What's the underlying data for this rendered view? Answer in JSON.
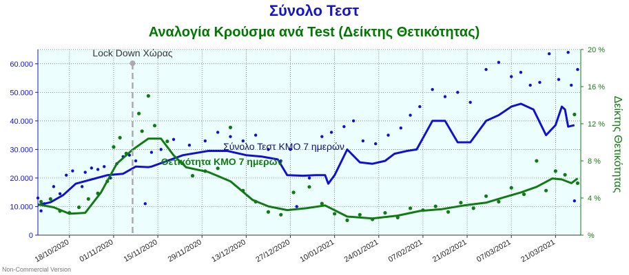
{
  "chart_data": {
    "type": "line",
    "title": "Σύνολο Τεστ",
    "subtitle": "Αναλογία Κρούσμα ανά Test (Δείκτης Θετικότητας)",
    "watermark": "Non-Commercial Version",
    "colors": {
      "title": "#1515c8",
      "subtitle": "#007700",
      "tests": "#1010d0",
      "positivity": "#127a12",
      "plot_bg": "#ecfefe",
      "grid": "#556b55",
      "lockdown": "#aaaaaa"
    },
    "y_left": {
      "min": 0,
      "max": 65000,
      "ticks": [
        0,
        10000,
        20000,
        30000,
        40000,
        50000,
        60000
      ],
      "tick_labels": [
        "0",
        "10.000",
        "20.000",
        "30.000",
        "40.000",
        "50.000",
        "60.000"
      ]
    },
    "y_right": {
      "label": "Δείκτης Θετικότητας",
      "min": 0,
      "max": 20,
      "ticks": [
        0,
        4,
        8,
        12,
        16,
        20
      ],
      "tick_labels": [
        "%",
        "4 %",
        "8 %",
        "12 %",
        "16 %",
        "20 %"
      ]
    },
    "x_range": [
      "2020-10-08",
      "2021-03-29"
    ],
    "x_ticks": [
      {
        "date": "2020-10-18",
        "label": "18/10/2020"
      },
      {
        "date": "2020-11-01",
        "label": "01/11/2020"
      },
      {
        "date": "2020-11-15",
        "label": "15/11/2020"
      },
      {
        "date": "2020-11-29",
        "label": "29/11/2020"
      },
      {
        "date": "2020-12-13",
        "label": "13/12/2020"
      },
      {
        "date": "2020-12-27",
        "label": "27/12/2020"
      },
      {
        "date": "2021-01-10",
        "label": "10/01/2021"
      },
      {
        "date": "2021-01-24",
        "label": "24/01/2021"
      },
      {
        "date": "2021-02-07",
        "label": "07/02/2021"
      },
      {
        "date": "2021-02-21",
        "label": "21/02/2021"
      },
      {
        "date": "2021-03-07",
        "label": "07/03/2021"
      },
      {
        "date": "2021-03-21",
        "label": "21/03/2021"
      }
    ],
    "annotations": {
      "lockdown": {
        "date": "2020-11-07",
        "label": "Lock Down Χώρας"
      },
      "tests_label": "Σύνολο Τεστ ΚΜΟ 7 ημερών",
      "positivity_label": "Θετικότητα ΚΜΟ 7 ημερών"
    },
    "grid": true,
    "series": [
      {
        "name": "Σύνολο Τεστ ΚΜΟ 7 ημερών",
        "axis": "left",
        "points": [
          [
            "2020-10-08",
            10500
          ],
          [
            "2020-10-12",
            11500
          ],
          [
            "2020-10-16",
            14000
          ],
          [
            "2020-10-20",
            18000
          ],
          [
            "2020-10-25",
            19500
          ],
          [
            "2020-10-30",
            21000
          ],
          [
            "2020-11-04",
            21500
          ],
          [
            "2020-11-08",
            24000
          ],
          [
            "2020-11-12",
            23800
          ],
          [
            "2020-11-13",
            24000
          ],
          [
            "2020-11-23",
            28000
          ],
          [
            "2020-12-01",
            29500
          ],
          [
            "2020-12-07",
            29500
          ],
          [
            "2020-12-13",
            28000
          ],
          [
            "2020-12-18",
            27500
          ],
          [
            "2020-12-23",
            26500
          ],
          [
            "2020-12-26",
            21000
          ],
          [
            "2020-12-31",
            20800
          ],
          [
            "2021-01-04",
            21000
          ],
          [
            "2021-01-07",
            21000
          ],
          [
            "2021-01-08",
            18000
          ],
          [
            "2021-01-10",
            21000
          ],
          [
            "2021-01-14",
            30000
          ],
          [
            "2021-01-18",
            25500
          ],
          [
            "2021-01-22",
            25000
          ],
          [
            "2021-01-26",
            26000
          ],
          [
            "2021-01-29",
            28500
          ],
          [
            "2021-02-02",
            29500
          ],
          [
            "2021-02-05",
            30000
          ],
          [
            "2021-02-10",
            40000
          ],
          [
            "2021-02-14",
            40000
          ],
          [
            "2021-02-18",
            32500
          ],
          [
            "2021-02-22",
            32500
          ],
          [
            "2021-02-27",
            40000
          ],
          [
            "2021-03-03",
            42000
          ],
          [
            "2021-03-07",
            45000
          ],
          [
            "2021-03-10",
            46000
          ],
          [
            "2021-03-14",
            44000
          ],
          [
            "2021-03-18",
            35000
          ],
          [
            "2021-03-21",
            38500
          ],
          [
            "2021-03-23",
            45000
          ],
          [
            "2021-03-24",
            44000
          ],
          [
            "2021-03-25",
            38000
          ],
          [
            "2021-03-27",
            38500
          ]
        ],
        "daily": [
          [
            "2020-10-08",
            13000
          ],
          [
            "2020-10-09",
            8500
          ],
          [
            "2020-10-10",
            11000
          ],
          [
            "2020-10-13",
            17000
          ],
          [
            "2020-10-15",
            14500
          ],
          [
            "2020-10-17",
            21000
          ],
          [
            "2020-10-19",
            22500
          ],
          [
            "2020-10-22",
            17000
          ],
          [
            "2020-10-23",
            22000
          ],
          [
            "2020-10-25",
            23500
          ],
          [
            "2020-10-27",
            23000
          ],
          [
            "2020-10-29",
            24000
          ],
          [
            "2020-10-31",
            20000
          ],
          [
            "2020-11-02",
            25000
          ],
          [
            "2020-11-04",
            27500
          ],
          [
            "2020-11-06",
            28000
          ],
          [
            "2020-11-08",
            26000
          ],
          [
            "2020-11-11",
            11000
          ],
          [
            "2020-11-13",
            29000
          ],
          [
            "2020-11-16",
            30000
          ],
          [
            "2020-11-20",
            33500
          ],
          [
            "2020-11-25",
            31500
          ],
          [
            "2020-11-30",
            33000
          ],
          [
            "2020-12-04",
            36000
          ],
          [
            "2020-12-08",
            34500
          ],
          [
            "2020-12-12",
            33000
          ],
          [
            "2020-12-16",
            35000
          ],
          [
            "2020-12-20",
            30000
          ],
          [
            "2020-12-24",
            26000
          ],
          [
            "2020-12-27",
            30000
          ],
          [
            "2020-12-29",
            10000
          ],
          [
            "2021-01-02",
            20000
          ],
          [
            "2021-01-06",
            34500
          ],
          [
            "2021-01-09",
            36000
          ],
          [
            "2021-01-13",
            38000
          ],
          [
            "2021-01-16",
            40000
          ],
          [
            "2021-01-19",
            33000
          ],
          [
            "2021-01-23",
            32000
          ],
          [
            "2021-01-27",
            35000
          ],
          [
            "2021-01-31",
            37500
          ],
          [
            "2021-02-03",
            42000
          ],
          [
            "2021-02-06",
            45000
          ],
          [
            "2021-02-10",
            51000
          ],
          [
            "2021-02-14",
            48500
          ],
          [
            "2021-02-18",
            50000
          ],
          [
            "2021-02-22",
            46500
          ],
          [
            "2021-02-27",
            58000
          ],
          [
            "2021-03-03",
            60500
          ],
          [
            "2021-03-07",
            55500
          ],
          [
            "2021-03-10",
            57000
          ],
          [
            "2021-03-13",
            52500
          ],
          [
            "2021-03-16",
            53500
          ],
          [
            "2021-03-19",
            63500
          ],
          [
            "2021-03-22",
            54500
          ],
          [
            "2021-03-25",
            64000
          ],
          [
            "2021-03-26",
            52500
          ],
          [
            "2021-03-28",
            58000
          ],
          [
            "2021-03-27",
            12000
          ]
        ]
      },
      {
        "name": "Θετικότητα ΚΜΟ 7 ημερών",
        "axis": "right",
        "points": [
          [
            "2020-10-08",
            3.3
          ],
          [
            "2020-10-13",
            3.0
          ],
          [
            "2020-10-18",
            2.3
          ],
          [
            "2020-10-23",
            2.4
          ],
          [
            "2020-10-28",
            4.6
          ],
          [
            "2020-11-02",
            7.7
          ],
          [
            "2020-11-07",
            9.2
          ],
          [
            "2020-11-12",
            10.4
          ],
          [
            "2020-11-16",
            10.4
          ],
          [
            "2020-11-20",
            8.6
          ],
          [
            "2020-11-24",
            7.3
          ],
          [
            "2020-12-01",
            6.8
          ],
          [
            "2020-12-08",
            5.8
          ],
          [
            "2020-12-15",
            3.8
          ],
          [
            "2020-12-20",
            3.1
          ],
          [
            "2020-12-26",
            2.7
          ],
          [
            "2021-01-01",
            2.9
          ],
          [
            "2021-01-07",
            3.2
          ],
          [
            "2021-01-14",
            2.0
          ],
          [
            "2021-01-22",
            1.8
          ],
          [
            "2021-01-30",
            2.1
          ],
          [
            "2021-02-06",
            2.6
          ],
          [
            "2021-02-13",
            2.8
          ],
          [
            "2021-02-20",
            3.2
          ],
          [
            "2021-02-27",
            3.5
          ],
          [
            "2021-03-05",
            4.1
          ],
          [
            "2021-03-10",
            4.6
          ],
          [
            "2021-03-15",
            5.2
          ],
          [
            "2021-03-20",
            6.1
          ],
          [
            "2021-03-23",
            6.0
          ],
          [
            "2021-03-26",
            5.6
          ],
          [
            "2021-03-28",
            6.1
          ]
        ],
        "daily": [
          [
            "2020-10-09",
            3.6
          ],
          [
            "2020-10-12",
            3.9
          ],
          [
            "2020-10-15",
            2.6
          ],
          [
            "2020-10-18",
            2.4
          ],
          [
            "2020-10-21",
            3.0
          ],
          [
            "2020-10-24",
            3.9
          ],
          [
            "2020-10-27",
            4.5
          ],
          [
            "2020-10-30",
            5.8
          ],
          [
            "2020-11-01",
            9.5
          ],
          [
            "2020-11-03",
            10.5
          ],
          [
            "2020-11-05",
            8.8
          ],
          [
            "2020-11-09",
            13.1
          ],
          [
            "2020-11-10",
            11.2
          ],
          [
            "2020-11-12",
            15.0
          ],
          [
            "2020-11-14",
            11.8
          ],
          [
            "2020-11-18",
            10.1
          ],
          [
            "2020-11-22",
            7.9
          ],
          [
            "2020-11-26",
            6.4
          ],
          [
            "2020-11-30",
            6.9
          ],
          [
            "2020-12-04",
            7.2
          ],
          [
            "2020-12-08",
            11.6
          ],
          [
            "2020-12-12",
            4.8
          ],
          [
            "2020-12-16",
            3.6
          ],
          [
            "2020-12-20",
            2.5
          ],
          [
            "2020-12-24",
            2.2
          ],
          [
            "2020-12-28",
            4.6
          ],
          [
            "2021-01-02",
            5.2
          ],
          [
            "2021-01-06",
            3.4
          ],
          [
            "2021-01-10",
            2.3
          ],
          [
            "2021-01-14",
            1.6
          ],
          [
            "2021-01-18",
            2.2
          ],
          [
            "2021-01-22",
            1.7
          ],
          [
            "2021-01-26",
            2.4
          ],
          [
            "2021-01-30",
            1.9
          ],
          [
            "2021-02-03",
            2.9
          ],
          [
            "2021-02-07",
            2.7
          ],
          [
            "2021-02-11",
            3.1
          ],
          [
            "2021-02-15",
            2.5
          ],
          [
            "2021-02-19",
            3.5
          ],
          [
            "2021-02-23",
            2.9
          ],
          [
            "2021-02-27",
            4.2
          ],
          [
            "2021-03-03",
            3.6
          ],
          [
            "2021-03-07",
            5.1
          ],
          [
            "2021-03-11",
            4.4
          ],
          [
            "2021-03-15",
            8.0
          ],
          [
            "2021-03-18",
            4.8
          ],
          [
            "2021-03-21",
            6.9
          ],
          [
            "2021-03-24",
            6.5
          ],
          [
            "2021-03-27",
            13.0
          ],
          [
            "2021-03-28",
            5.6
          ]
        ]
      }
    ]
  }
}
